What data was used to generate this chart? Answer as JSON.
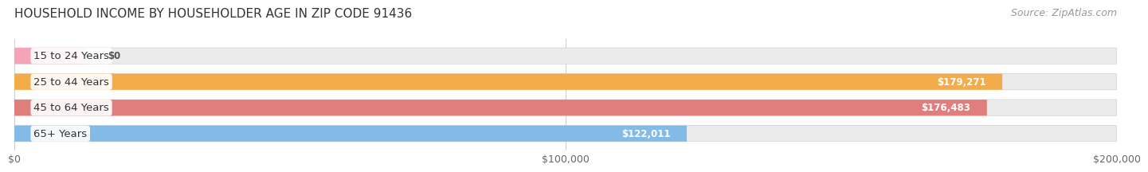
{
  "title": "HOUSEHOLD INCOME BY HOUSEHOLDER AGE IN ZIP CODE 91436",
  "source": "Source: ZipAtlas.com",
  "categories": [
    "15 to 24 Years",
    "25 to 44 Years",
    "45 to 64 Years",
    "65+ Years"
  ],
  "values": [
    0,
    179271,
    176483,
    122011
  ],
  "value_labels": [
    "$0",
    "$179,271",
    "$176,483",
    "$122,011"
  ],
  "bar_colors": [
    "#f5a0b5",
    "#f5a942",
    "#e07878",
    "#7eb8e8"
  ],
  "xlim": [
    0,
    200000
  ],
  "xticks": [
    0,
    100000,
    200000
  ],
  "xtick_labels": [
    "$0",
    "$100,000",
    "$200,000"
  ],
  "title_fontsize": 11,
  "source_fontsize": 9,
  "label_fontsize": 9.5,
  "value_fontsize": 8.5,
  "tick_fontsize": 9,
  "background_color": "#ffffff",
  "bar_height": 0.62,
  "bar_bg_color": "#ebebeb"
}
